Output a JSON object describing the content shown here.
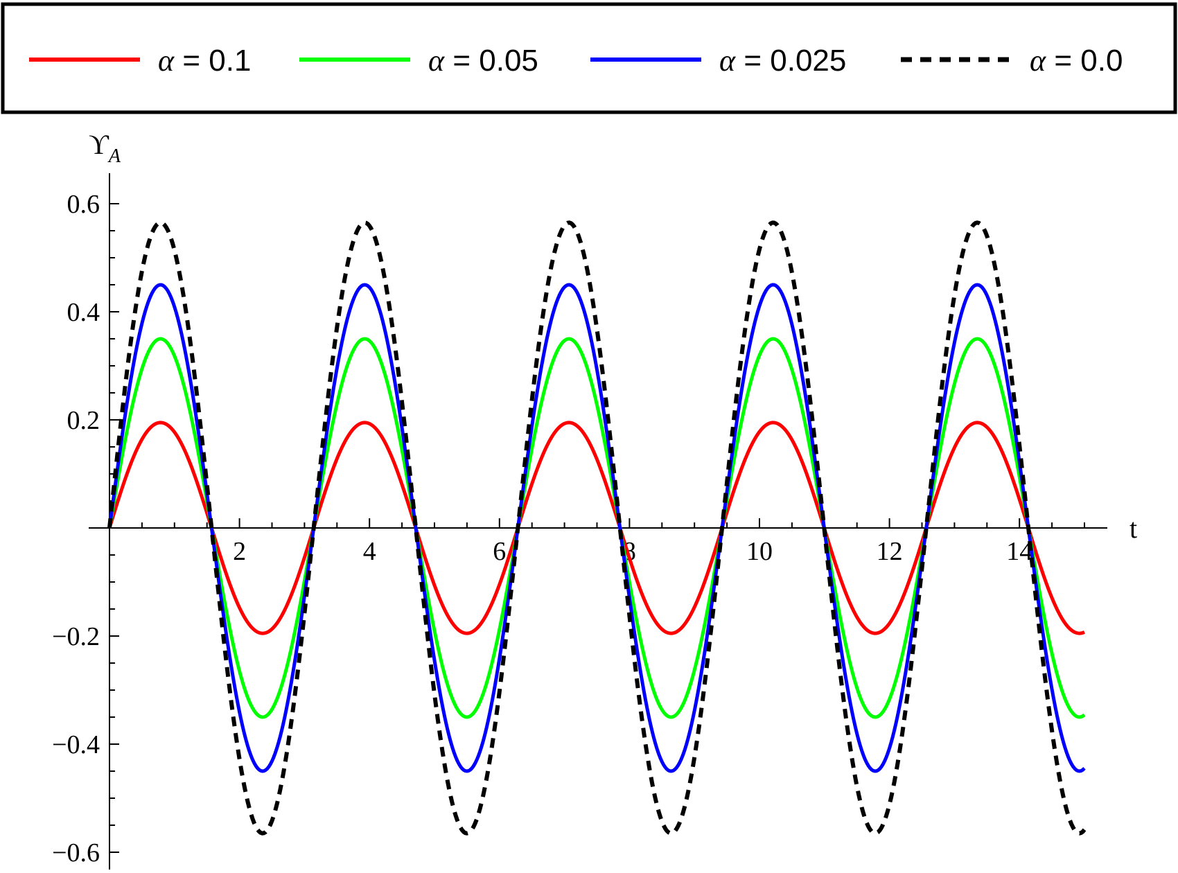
{
  "chart_data": {
    "type": "line",
    "xlabel": "t",
    "ylabel_main": "ϒ",
    "ylabel_sub": "A",
    "xlim": [
      0,
      15
    ],
    "ylim": [
      -0.6,
      0.6
    ],
    "x_ticks": [
      {
        "value": 2,
        "label": "2"
      },
      {
        "value": 4,
        "label": "4"
      },
      {
        "value": 6,
        "label": "6"
      },
      {
        "value": 8,
        "label": "8"
      },
      {
        "value": 10,
        "label": "10"
      },
      {
        "value": 12,
        "label": "12"
      },
      {
        "value": 14,
        "label": "14"
      }
    ],
    "y_ticks": [
      {
        "value": 0.6,
        "label": "0.6"
      },
      {
        "value": 0.4,
        "label": "0.4"
      },
      {
        "value": 0.2,
        "label": "0.2"
      },
      {
        "value": -0.2,
        "label": "−0.2"
      },
      {
        "value": -0.4,
        "label": "−0.4"
      },
      {
        "value": -0.6,
        "label": "−0.6"
      }
    ],
    "legend_position": "top",
    "grid": false,
    "series": [
      {
        "name": "α = 0.1",
        "alpha": "0.1",
        "amplitude": 0.195,
        "color": "#ff0000",
        "dash": false,
        "x": [
          0,
          0.7854,
          1.5708,
          2.3562,
          3.1416,
          3.927,
          4.7124,
          5.4978,
          6.2832,
          7.0686,
          7.854,
          8.6394,
          9.4248,
          10.2102,
          10.9956,
          11.781,
          12.5664,
          13.3518,
          14.1372,
          14.9226
        ],
        "y": [
          0,
          0.195,
          0,
          -0.195,
          0,
          0.195,
          0,
          -0.195,
          0,
          0.195,
          0,
          -0.195,
          0,
          0.195,
          0,
          -0.195,
          0,
          0.195,
          0,
          -0.195
        ]
      },
      {
        "name": "α = 0.05",
        "alpha": "0.05",
        "amplitude": 0.35,
        "color": "#00ff00",
        "dash": false,
        "x": [
          0,
          0.7854,
          1.5708,
          2.3562,
          3.1416,
          3.927,
          4.7124,
          5.4978,
          6.2832,
          7.0686,
          7.854,
          8.6394,
          9.4248,
          10.2102,
          10.9956,
          11.781,
          12.5664,
          13.3518,
          14.1372,
          14.9226
        ],
        "y": [
          0,
          0.35,
          0,
          -0.35,
          0,
          0.35,
          0,
          -0.35,
          0,
          0.35,
          0,
          -0.35,
          0,
          0.35,
          0,
          -0.35,
          0,
          0.35,
          0,
          -0.35
        ]
      },
      {
        "name": "α = 0.025",
        "alpha": "0.025",
        "amplitude": 0.45,
        "color": "#0000ff",
        "dash": false,
        "x": [
          0,
          0.7854,
          1.5708,
          2.3562,
          3.1416,
          3.927,
          4.7124,
          5.4978,
          6.2832,
          7.0686,
          7.854,
          8.6394,
          9.4248,
          10.2102,
          10.9956,
          11.781,
          12.5664,
          13.3518,
          14.1372,
          14.9226
        ],
        "y": [
          0,
          0.45,
          0,
          -0.45,
          0,
          0.45,
          0,
          -0.45,
          0,
          0.45,
          0,
          -0.45,
          0,
          0.45,
          0,
          -0.45,
          0,
          0.45,
          0,
          -0.45
        ]
      },
      {
        "name": "α = 0.0",
        "alpha": "0.0",
        "amplitude": 0.565,
        "color": "#000000",
        "dash": true,
        "x": [
          0,
          0.7854,
          1.5708,
          2.3562,
          3.1416,
          3.927,
          4.7124,
          5.4978,
          6.2832,
          7.0686,
          7.854,
          8.6394,
          9.4248,
          10.2102,
          10.9956,
          11.781,
          12.5664,
          13.3518,
          14.1372,
          14.9226
        ],
        "y": [
          0,
          0.565,
          0,
          -0.565,
          0,
          0.565,
          0,
          -0.565,
          0,
          0.565,
          0,
          -0.565,
          0,
          0.565,
          0,
          -0.565,
          0,
          0.565,
          0,
          -0.565
        ]
      }
    ]
  }
}
